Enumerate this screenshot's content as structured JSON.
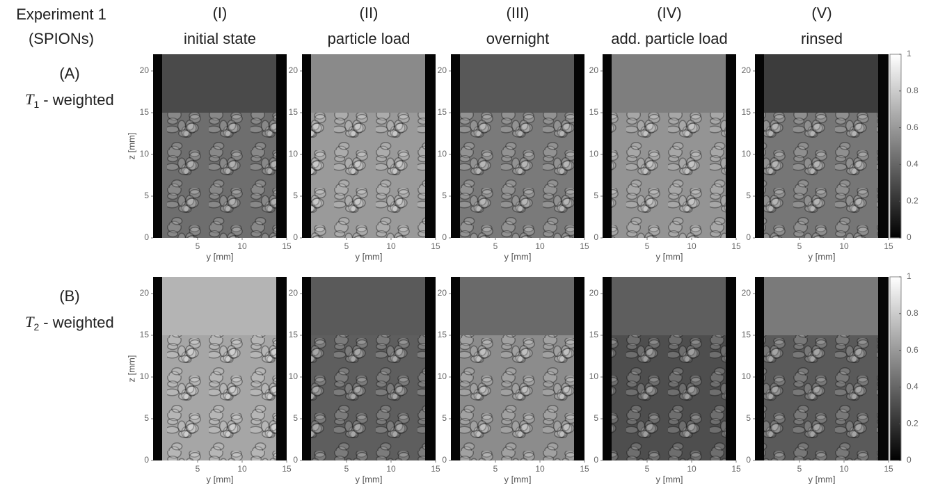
{
  "header": {
    "experiment": "Experiment 1",
    "subtitle": "(SPIONs)"
  },
  "columns": [
    {
      "id": "(I)",
      "label": "initial state"
    },
    {
      "id": "(II)",
      "label": "particle load"
    },
    {
      "id": "(III)",
      "label": "overnight"
    },
    {
      "id": "(IV)",
      "label": "add. particle load"
    },
    {
      "id": "(V)",
      "label": "rinsed"
    }
  ],
  "rows": [
    {
      "id": "(A)",
      "symbol": "T",
      "subscript": "1",
      "suffix": "- weighted"
    },
    {
      "id": "(B)",
      "symbol": "T",
      "subscript": "2",
      "suffix": "- weighted"
    }
  ],
  "axes": {
    "xlabel": "y [mm]",
    "ylabel": "z [mm]",
    "xlim": [
      0,
      15
    ],
    "xticks": [
      5,
      10,
      15
    ],
    "ylim": [
      0,
      22
    ],
    "yticks": [
      0,
      5,
      10,
      15,
      20
    ]
  },
  "colorbar": {
    "lim": [
      0,
      1
    ],
    "ticks": [
      0,
      0.2,
      0.4,
      0.6,
      0.8,
      1
    ]
  }
}
